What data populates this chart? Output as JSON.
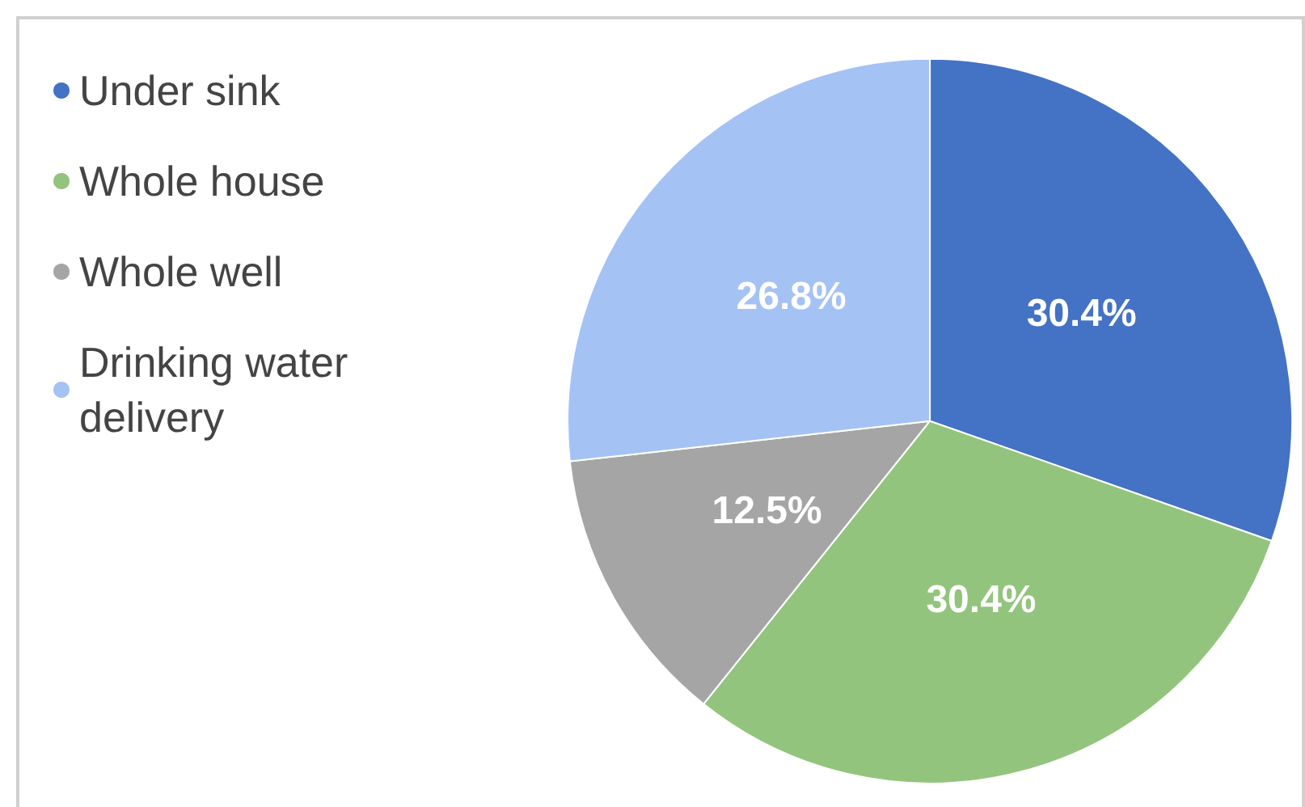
{
  "chart_data": {
    "type": "pie",
    "categories": [
      "Under sink",
      "Whole house",
      "Whole well",
      "Drinking water delivery"
    ],
    "values": [
      30.4,
      30.4,
      12.5,
      26.8
    ],
    "value_labels": [
      "30.4%",
      "30.4%",
      "12.5%",
      "26.8%"
    ],
    "colors": [
      "#4472c4",
      "#93c47d",
      "#a5a5a5",
      "#a4c2f4"
    ],
    "legend": "top left"
  }
}
